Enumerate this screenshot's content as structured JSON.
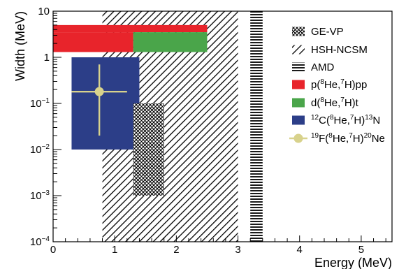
{
  "chart_data": {
    "type": "box",
    "xlabel": "Energy (MeV)",
    "ylabel": "Width (MeV)",
    "xlim": [
      0,
      5.5
    ],
    "ylim": [
      0.0001,
      10
    ],
    "yscale": "log",
    "grid": false,
    "legend_position": "top-right",
    "x_ticks": [
      0,
      1,
      2,
      3,
      4,
      5
    ],
    "y_ticks": [
      {
        "value": 0.0001,
        "base": "10",
        "exp": "−4"
      },
      {
        "value": 0.001,
        "base": "10",
        "exp": "−3"
      },
      {
        "value": 0.01,
        "base": "10",
        "exp": "−2"
      },
      {
        "value": 0.1,
        "base": "10",
        "exp": "−1"
      },
      {
        "value": 1,
        "base": "1",
        "exp": ""
      },
      {
        "value": 10,
        "base": "10",
        "exp": ""
      }
    ],
    "series": [
      {
        "key": "ge-vp",
        "name": "GE-VP",
        "style": "crosshatch",
        "color": "#000000",
        "boxes": [
          {
            "x": [
              1.3,
              1.8
            ],
            "y": [
              0.001,
              0.1
            ]
          }
        ]
      },
      {
        "key": "hsh-ncsm",
        "name": "HSH-NCSM",
        "style": "diagonal-hatch",
        "color": "#000000",
        "boxes": [
          {
            "x": [
              0.8,
              3.0
            ],
            "y": [
              0.0001,
              10
            ]
          }
        ]
      },
      {
        "key": "amd",
        "name": "AMD",
        "style": "horizontal-hatch",
        "color": "#000000",
        "boxes": [
          {
            "x": [
              3.2,
              3.4
            ],
            "y": [
              0.0001,
              10
            ]
          }
        ]
      },
      {
        "key": "p-pp",
        "name": "p(8He,7H)pp",
        "style": "fill",
        "color": "#e8242b",
        "boxes": [
          {
            "x": [
              0.0,
              2.5
            ],
            "y": [
              3.5,
              5.0
            ]
          },
          {
            "x": [
              0.0,
              1.3
            ],
            "y": [
              1.3,
              3.5
            ]
          }
        ]
      },
      {
        "key": "d-t",
        "name": "d(8He,7H)t",
        "style": "fill",
        "color": "#4aa54a",
        "boxes": [
          {
            "x": [
              1.3,
              2.5
            ],
            "y": [
              1.3,
              3.5
            ]
          }
        ]
      },
      {
        "key": "c-n",
        "name": "12C(8He,7H)13N",
        "style": "fill",
        "color": "#2c3e88",
        "boxes": [
          {
            "x": [
              0.3,
              1.4
            ],
            "y": [
              0.01,
              1.0
            ]
          }
        ]
      },
      {
        "key": "f-ne",
        "name": "19F(8He,7H)20Ne",
        "style": "point",
        "color": "#d8d28c",
        "points": [
          {
            "x": 0.75,
            "y": 0.18,
            "x_err": [
              0.45,
              0.45
            ],
            "y_err": [
              0.16,
              0.52
            ]
          }
        ]
      }
    ],
    "legend_parts": [
      [
        {
          "t": "GE-VP"
        }
      ],
      [
        {
          "t": "HSH-NCSM"
        }
      ],
      [
        {
          "t": "AMD"
        }
      ],
      [
        {
          "t": "p("
        },
        {
          "t": "8",
          "sup": true
        },
        {
          "t": "He,"
        },
        {
          "t": "7",
          "sup": true
        },
        {
          "t": "H)pp"
        }
      ],
      [
        {
          "t": "d("
        },
        {
          "t": "8",
          "sup": true
        },
        {
          "t": "He,"
        },
        {
          "t": "7",
          "sup": true
        },
        {
          "t": "H)t"
        }
      ],
      [
        {
          "t": "12",
          "sup": true
        },
        {
          "t": "C("
        },
        {
          "t": "8",
          "sup": true
        },
        {
          "t": "He,"
        },
        {
          "t": "7",
          "sup": true
        },
        {
          "t": "H)"
        },
        {
          "t": "13",
          "sup": true
        },
        {
          "t": "N"
        }
      ],
      [
        {
          "t": "19",
          "sup": true
        },
        {
          "t": "F("
        },
        {
          "t": "8",
          "sup": true
        },
        {
          "t": "He,"
        },
        {
          "t": "7",
          "sup": true
        },
        {
          "t": "H)"
        },
        {
          "t": "20",
          "sup": true
        },
        {
          "t": "Ne"
        }
      ]
    ]
  }
}
